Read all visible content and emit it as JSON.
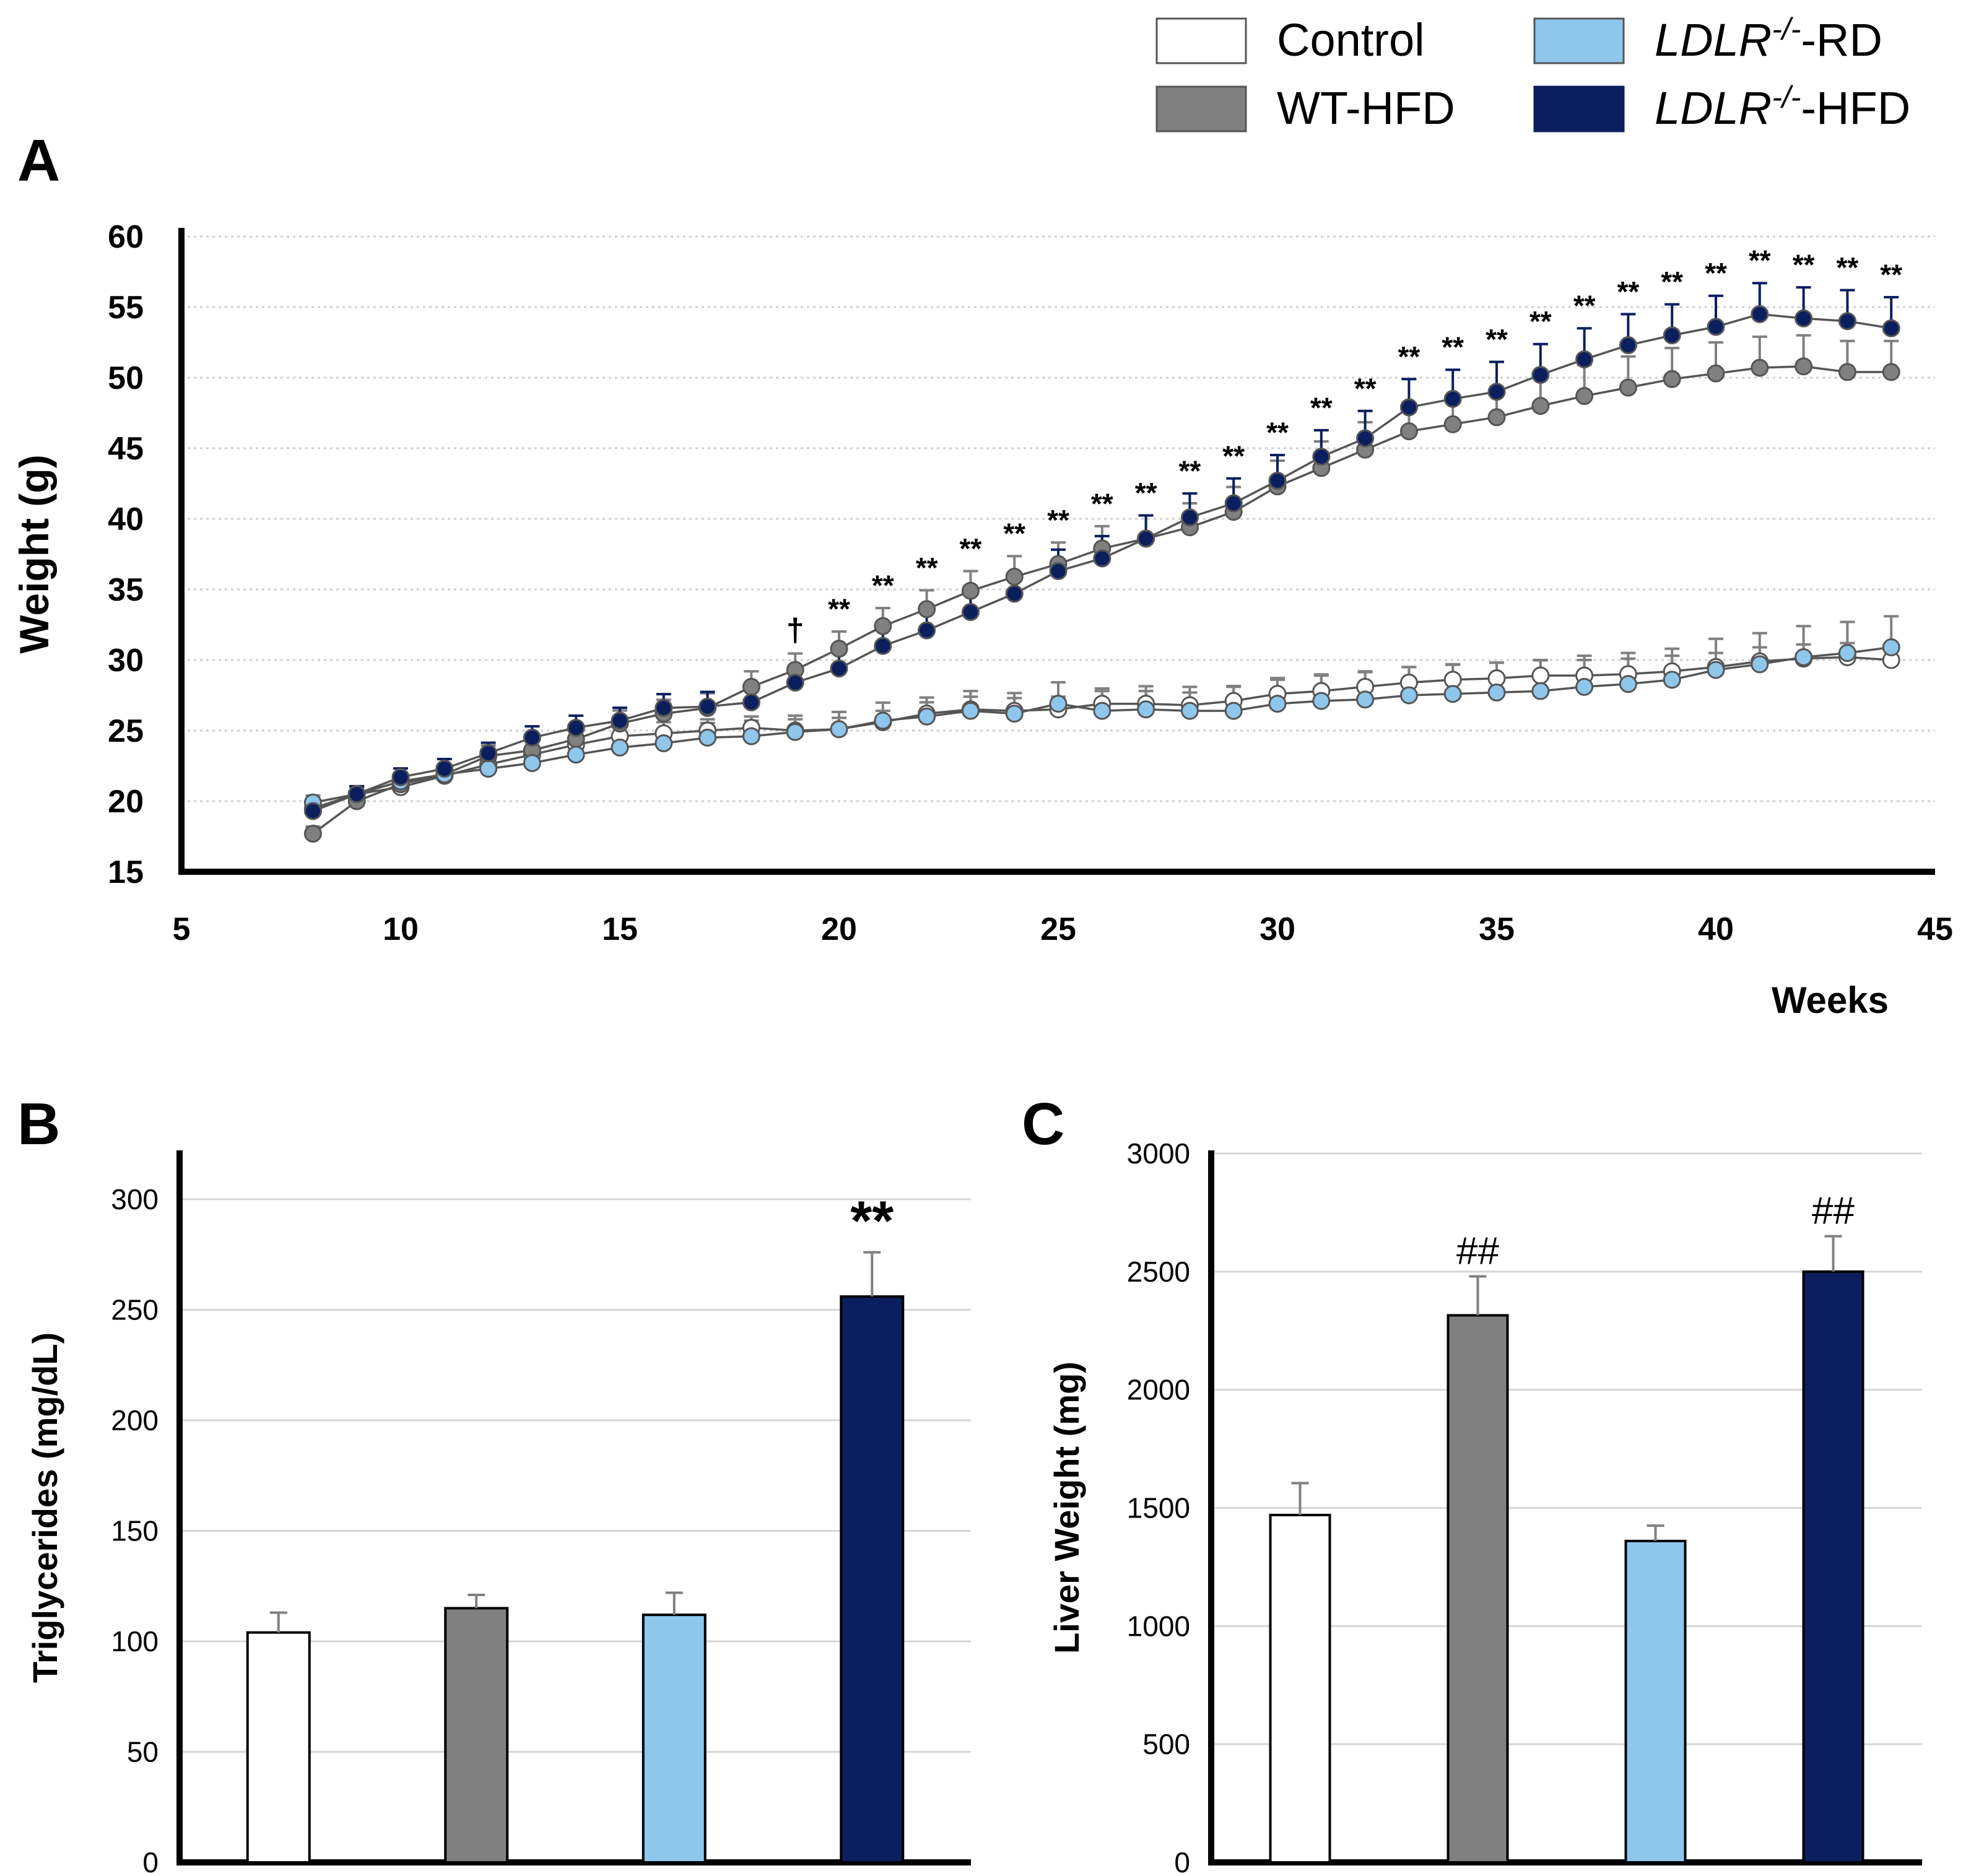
{
  "legend": [
    {
      "label": "Control",
      "color": "#ffffff",
      "stroke": "#555555"
    },
    {
      "label": "WT-HFD",
      "color": "#808080",
      "stroke": "#555555"
    },
    {
      "label": "LDLR",
      "label_sup": "-/-",
      "label_suffix": "-RD",
      "color": "#8ec6ec",
      "stroke": "#555555"
    },
    {
      "label": "LDLR",
      "label_sup": "-/-",
      "label_suffix": "-HFD",
      "color": "#0b1f5e",
      "stroke": "#0b1f5e"
    }
  ],
  "chart_data": [
    {
      "panel": "A",
      "type": "line",
      "xlabel": "Weeks",
      "ylabel": "Weight (g)",
      "xlim": [
        5,
        45
      ],
      "ylim": [
        15,
        60
      ],
      "xticks": [
        5,
        10,
        15,
        20,
        25,
        30,
        35,
        40,
        45
      ],
      "yticks": [
        15,
        20,
        25,
        30,
        35,
        40,
        45,
        50,
        55,
        60
      ],
      "x": [
        8,
        9,
        10,
        11,
        12,
        13,
        14,
        15,
        16,
        17,
        18,
        19,
        20,
        21,
        22,
        23,
        24,
        25,
        26,
        27,
        28,
        29,
        30,
        31,
        32,
        33,
        34,
        35,
        36,
        37,
        38,
        39,
        40,
        41,
        42,
        43,
        44
      ],
      "series": [
        {
          "name": "Control",
          "color": "#ffffff",
          "values": [
            19.5,
            20.5,
            21.0,
            21.8,
            22.6,
            23.3,
            24.0,
            24.6,
            24.8,
            25.0,
            25.2,
            25.0,
            25.1,
            25.6,
            26.2,
            26.5,
            26.4,
            26.5,
            26.9,
            26.9,
            26.8,
            27.1,
            27.6,
            27.8,
            28.1,
            28.4,
            28.6,
            28.7,
            28.9,
            28.9,
            29.0,
            29.2,
            29.5,
            29.9,
            30.1,
            30.2,
            30.0
          ],
          "errors": [
            0.5,
            0.5,
            0.6,
            0.6,
            0.6,
            0.6,
            0.7,
            0.8,
            0.8,
            0.8,
            0.8,
            0.8,
            0.8,
            0.8,
            0.8,
            0.9,
            0.9,
            0.9,
            0.9,
            0.9,
            0.9,
            1.0,
            1.0,
            1.1,
            1.1,
            1.1,
            1.1,
            1.1,
            1.1,
            1.1,
            1.1,
            1.1,
            1.0,
            1.0,
            1.0,
            1.0,
            1.0
          ]
        },
        {
          "name": "WT-HFD",
          "color": "#808080",
          "values": [
            17.7,
            20.0,
            21.2,
            21.9,
            23.2,
            23.6,
            24.4,
            25.5,
            26.2,
            26.6,
            28.1,
            29.3,
            30.8,
            32.4,
            33.6,
            34.9,
            35.9,
            36.8,
            37.9,
            38.6,
            39.4,
            40.5,
            42.3,
            43.6,
            44.9,
            46.2,
            46.7,
            47.2,
            48.0,
            48.7,
            49.3,
            49.9,
            50.3,
            50.7,
            50.8,
            50.4,
            50.4
          ]
        },
        {
          "name": "LDLR-/--RD",
          "color": "#8ec6ec",
          "values": [
            19.9,
            20.5,
            21.4,
            21.9,
            22.3,
            22.7,
            23.3,
            23.8,
            24.1,
            24.5,
            24.6,
            24.9,
            25.1,
            25.7,
            26.0,
            26.4,
            26.2,
            26.9,
            26.4,
            26.5,
            26.4,
            26.4,
            26.9,
            27.1,
            27.2,
            27.5,
            27.6,
            27.7,
            27.8,
            28.1,
            28.3,
            28.6,
            29.3,
            29.7,
            30.2,
            30.5,
            30.9
          ]
        },
        {
          "name": "LDLR-/--HFD",
          "color": "#0b1f5e",
          "values": [
            19.3,
            20.5,
            21.7,
            22.3,
            23.4,
            24.5,
            25.2,
            25.7,
            26.6,
            26.7,
            27.0,
            28.4,
            29.4,
            31.0,
            32.1,
            33.4,
            34.7,
            36.3,
            37.2,
            38.6,
            40.1,
            41.1,
            42.7,
            44.4,
            45.7,
            47.9,
            48.5,
            49.0,
            50.2,
            51.3,
            52.3,
            53.0,
            53.6,
            54.5,
            54.2,
            54.0,
            53.5
          ]
        }
      ],
      "annotations": [
        {
          "x": 19,
          "text": "†"
        },
        {
          "x": 20,
          "text": "**"
        },
        {
          "x": 21,
          "text": "**"
        },
        {
          "x": 22,
          "text": "**"
        },
        {
          "x": 23,
          "text": "**"
        },
        {
          "x": 24,
          "text": "**"
        },
        {
          "x": 25,
          "text": "**"
        },
        {
          "x": 26,
          "text": "**"
        },
        {
          "x": 27,
          "text": "**"
        },
        {
          "x": 28,
          "text": "**"
        },
        {
          "x": 29,
          "text": "**"
        },
        {
          "x": 30,
          "text": "**"
        },
        {
          "x": 31,
          "text": "**"
        },
        {
          "x": 32,
          "text": "**"
        },
        {
          "x": 33,
          "text": "**"
        },
        {
          "x": 34,
          "text": "**"
        },
        {
          "x": 35,
          "text": "**"
        },
        {
          "x": 36,
          "text": "**"
        },
        {
          "x": 37,
          "text": "**"
        },
        {
          "x": 38,
          "text": "**"
        },
        {
          "x": 39,
          "text": "**"
        },
        {
          "x": 40,
          "text": "**"
        },
        {
          "x": 41,
          "text": "**"
        },
        {
          "x": 42,
          "text": "**"
        },
        {
          "x": 43,
          "text": "**"
        },
        {
          "x": 44,
          "text": "**"
        }
      ]
    },
    {
      "panel": "B",
      "type": "bar",
      "ylabel": "Triglycerides (mg/dL)",
      "ylim": [
        0,
        300
      ],
      "yticks": [
        0,
        50,
        100,
        150,
        200,
        250,
        300
      ],
      "categories": [
        "Control",
        "WT-HFD",
        "LDLR-/--RD",
        "LDLR-/--HFD"
      ],
      "values": [
        104,
        115,
        112,
        256
      ],
      "errors": [
        9,
        6,
        10,
        20
      ],
      "colors": [
        "#ffffff",
        "#808080",
        "#8ec6ec",
        "#0b1f5e"
      ],
      "annotations": [
        "",
        "",
        "",
        "**"
      ]
    },
    {
      "panel": "C",
      "type": "bar",
      "ylabel": "Liver Weight (mg)",
      "ylim": [
        0,
        3000
      ],
      "yticks": [
        0,
        500,
        1000,
        1500,
        2000,
        2500,
        3000
      ],
      "categories": [
        "Control",
        "WT-HFD",
        "LDLR-/--RD",
        "LDLR-/--HFD"
      ],
      "values": [
        1470,
        2315,
        1360,
        2500
      ],
      "errors": [
        135,
        165,
        65,
        150
      ],
      "colors": [
        "#ffffff",
        "#808080",
        "#8ec6ec",
        "#0b1f5e"
      ],
      "annotations": [
        "",
        "##",
        "",
        "##"
      ]
    }
  ]
}
